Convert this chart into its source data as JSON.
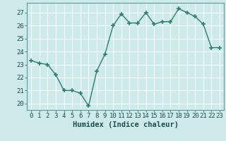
{
  "x": [
    0,
    1,
    2,
    3,
    4,
    5,
    6,
    7,
    8,
    9,
    10,
    11,
    12,
    13,
    14,
    15,
    16,
    17,
    18,
    19,
    20,
    21,
    22,
    23
  ],
  "y": [
    23.3,
    23.1,
    23.0,
    22.2,
    21.0,
    21.0,
    20.8,
    19.8,
    22.5,
    23.8,
    26.0,
    26.9,
    26.2,
    26.2,
    27.0,
    26.1,
    26.3,
    26.3,
    27.3,
    27.0,
    26.7,
    26.1,
    24.3,
    24.3
  ],
  "line_color": "#2e7d6e",
  "marker": "+",
  "marker_size": 4,
  "marker_lw": 1.2,
  "bg_color": "#ceeaea",
  "grid_color": "#ffffff",
  "grid_minor_color": "#e0f0f0",
  "xlabel": "Humidex (Indice chaleur)",
  "xlim": [
    -0.5,
    23.5
  ],
  "ylim": [
    19.5,
    27.75
  ],
  "yticks": [
    20,
    21,
    22,
    23,
    24,
    25,
    26,
    27
  ],
  "xticks": [
    0,
    1,
    2,
    3,
    4,
    5,
    6,
    7,
    8,
    9,
    10,
    11,
    12,
    13,
    14,
    15,
    16,
    17,
    18,
    19,
    20,
    21,
    22,
    23
  ],
  "tick_fontsize": 6.5,
  "xlabel_fontsize": 7.5,
  "linewidth": 1.0
}
